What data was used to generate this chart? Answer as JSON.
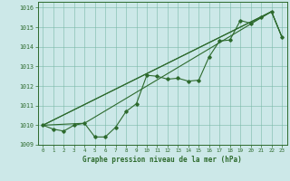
{
  "title": "Graphe pression niveau de la mer (hPa)",
  "background_color": "#cce8e8",
  "grid_color": "#7ab8a8",
  "line_color": "#2d6a2d",
  "xlim": [
    -0.5,
    23.5
  ],
  "ylim": [
    1009,
    1016.3
  ],
  "xtick_labels": [
    "0",
    "1",
    "2",
    "3",
    "4",
    "5",
    "6",
    "7",
    "8",
    "9",
    "10",
    "11",
    "12",
    "13",
    "14",
    "15",
    "16",
    "17",
    "18",
    "19",
    "20",
    "21",
    "22",
    "23"
  ],
  "xtick_pos": [
    0,
    1,
    2,
    3,
    4,
    5,
    6,
    7,
    8,
    9,
    10,
    11,
    12,
    13,
    14,
    15,
    16,
    17,
    18,
    19,
    20,
    21,
    22,
    23
  ],
  "ytick_labels": [
    "1009",
    "1010",
    "1011",
    "1012",
    "1013",
    "1014",
    "1015",
    "1016"
  ],
  "ytick_pos": [
    1009,
    1010,
    1011,
    1012,
    1013,
    1014,
    1015,
    1016
  ],
  "series1_x": [
    0,
    1,
    2,
    3,
    4,
    5,
    6,
    7,
    8,
    9,
    10,
    11,
    12,
    13,
    14,
    15,
    16,
    17,
    18,
    19,
    20,
    21,
    22,
    23
  ],
  "series1_y": [
    1010.0,
    1009.8,
    1009.7,
    1010.0,
    1010.1,
    1009.4,
    1009.4,
    1009.9,
    1010.7,
    1011.1,
    1012.55,
    1012.5,
    1012.35,
    1012.4,
    1012.25,
    1012.3,
    1013.5,
    1014.3,
    1014.35,
    1015.35,
    1015.2,
    1015.5,
    1015.8,
    1014.5
  ],
  "line2_x": [
    0,
    22
  ],
  "line2_y": [
    1010.0,
    1015.8
  ],
  "line3_x": [
    0,
    4,
    22,
    23
  ],
  "line3_y": [
    1010.0,
    1010.1,
    1015.8,
    1014.5
  ],
  "line4_x": [
    0,
    22,
    23
  ],
  "line4_y": [
    1010.0,
    1015.8,
    1014.5
  ]
}
